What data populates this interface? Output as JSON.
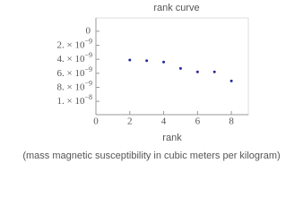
{
  "chart_data": {
    "type": "scatter",
    "title": "rank curve",
    "xlabel": "rank",
    "caption": "(mass magnetic susceptibility in cubic meters per kilogram)",
    "x": [
      2,
      3,
      4,
      5,
      6,
      7,
      8
    ],
    "values": [
      -4.1e-09,
      -4.2e-09,
      -4.4e-09,
      -5.3e-09,
      -5.8e-09,
      -5.8e-09,
      -7.1e-09
    ],
    "color": "#2a2a9c",
    "xlim": [
      0,
      9
    ],
    "xticks": [
      0,
      2,
      4,
      6,
      8
    ],
    "ylim": [
      -1.19e-08,
      1.9e-09
    ],
    "yticks": [
      0,
      {
        "value": -2e-09,
        "label": "2. × 10",
        "exp": "−9"
      },
      {
        "value": -4e-09,
        "label": "4. × 10",
        "exp": "−9"
      },
      {
        "value": -6e-09,
        "label": "6. × 10",
        "exp": "−9"
      },
      {
        "value": -8e-09,
        "label": "8. × 10",
        "exp": "−9"
      },
      {
        "value": -1e-08,
        "label": "1. × 10",
        "exp": "−8"
      }
    ]
  }
}
